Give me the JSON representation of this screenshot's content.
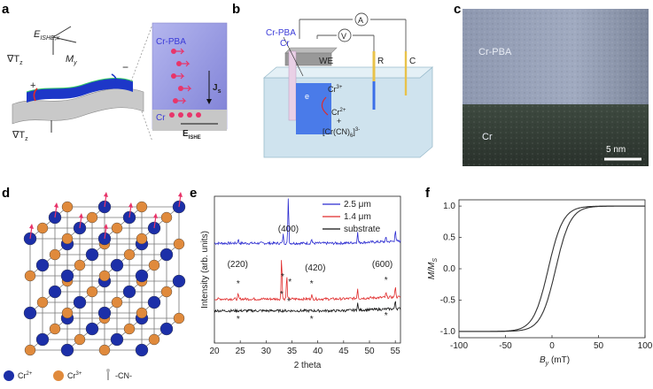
{
  "panels": {
    "a": {
      "letter": "a",
      "e_ishe": "E",
      "e_ishe_sub": "ISHE,x",
      "grad_t": "∇T",
      "grad_t_sub": "z",
      "m": "M",
      "m_sub": "y",
      "plus": "+",
      "minus": "−",
      "grad_t2": "∇T",
      "grad_t2_sub": "z",
      "crpba": "Cr-PBA",
      "js": "J",
      "js_sub": "s",
      "cr": "Cr",
      "e2": "E",
      "e2_sub": "ISHE"
    },
    "b": {
      "letter": "b",
      "crpba": "Cr-PBA",
      "cr": "Cr",
      "ammeter": "A",
      "voltmeter": "V",
      "we": "WE",
      "r": "R",
      "c": "C",
      "e": "e",
      "cr3": "Cr",
      "cr3_sup": "3+",
      "cr2": "Cr",
      "cr2_sup": "2+",
      "plus": "+",
      "complex": "[Cr(CN)",
      "complex_sub": "6",
      "complex_end": "]",
      "complex_sup": "3-"
    },
    "c": {
      "letter": "c",
      "crpba": "Cr-PBA",
      "cr": "Cr",
      "scale": "5 nm"
    },
    "d": {
      "letter": "d",
      "legend_cr2": "Cr",
      "legend_cr2_sup": "2+",
      "legend_cr3": "Cr",
      "legend_cr3_sup": "3+",
      "legend_cn": "-CN-"
    },
    "e": {
      "letter": "e",
      "peaks": [
        "(220)",
        "(400)",
        "(420)",
        "(600)"
      ],
      "star": "*"
    },
    "f": {
      "letter": "f"
    }
  },
  "colors": {
    "crpba_blue": "#3a3ad8",
    "cr2_ball": "#1c2fa8",
    "cr3_ball": "#e08a3c",
    "spin_arrow": "#e8356a",
    "series_25": "#2b2bd0",
    "series_14": "#e02a2a",
    "series_sub": "#111111",
    "loop": "#333333"
  },
  "chart_data": [
    {
      "type": "line",
      "panel": "e",
      "xlabel": "2 theta",
      "ylabel": "Intensity (arb. units)",
      "xlim": [
        20,
        56
      ],
      "xticks": [
        20,
        25,
        30,
        35,
        40,
        45,
        50,
        55
      ],
      "series": [
        {
          "name": "2.5 μm",
          "baseline": 0.68,
          "peaks": [
            [
              24.6,
              0.03
            ],
            [
              33.3,
              0.06
            ],
            [
              34.3,
              0.32
            ],
            [
              38.8,
              0.03
            ],
            [
              47.7,
              0.07
            ],
            [
              53.2,
              0.03
            ],
            [
              55.0,
              0.08
            ]
          ]
        },
        {
          "name": "1.4 μm",
          "baseline": 0.3,
          "peaks": [
            [
              24.6,
              0.03
            ],
            [
              33.0,
              0.3
            ],
            [
              34.0,
              0.16
            ],
            [
              38.8,
              0.03
            ],
            [
              47.7,
              0.07
            ],
            [
              53.2,
              0.03
            ],
            [
              55.0,
              0.08
            ]
          ]
        },
        {
          "name": "substrate",
          "baseline": 0.22,
          "peaks": [
            [
              47.7,
              0.05
            ],
            [
              55.0,
              0.06
            ]
          ]
        }
      ]
    },
    {
      "type": "line",
      "panel": "f",
      "xlabel": "B",
      "xlabel_sub": "y",
      "xlabel_unit": " (mT)",
      "ylabel": "M/M",
      "ylabel_sub": "S",
      "xlim": [
        -100,
        100
      ],
      "ylim": [
        -1.1,
        1.1
      ],
      "xticks": [
        -100,
        -50,
        0,
        50,
        100
      ],
      "xtick_labels": [
        "-100",
        "-50",
        "0",
        "50",
        "100"
      ],
      "yticks": [
        -1.0,
        -0.5,
        0.0,
        0.5,
        1.0
      ],
      "ytick_labels": [
        "-1.0",
        "-0.5",
        "0.0",
        "0.5",
        "1.0"
      ],
      "coercive_field": 4,
      "saturation_width": 16
    }
  ]
}
